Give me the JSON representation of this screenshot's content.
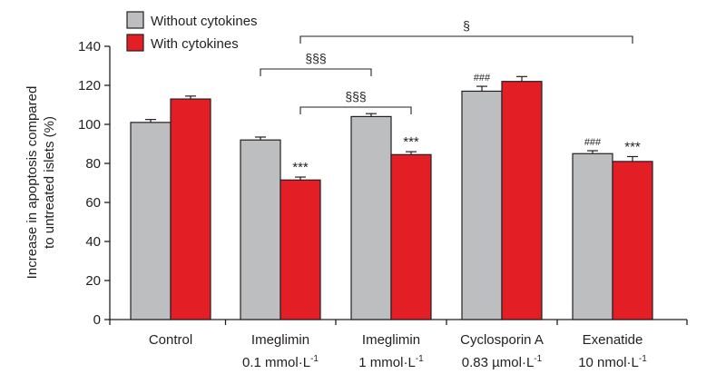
{
  "chart_data": {
    "type": "bar",
    "title": "",
    "xlabel": "",
    "ylabel": [
      "Increase in apoptosis compared",
      "to untreated islets (%)"
    ],
    "ylim": [
      0,
      140
    ],
    "yticks": [
      0,
      20,
      40,
      60,
      80,
      100,
      120,
      140
    ],
    "grid": false,
    "legend_position": "top-left",
    "categories": [
      {
        "line1": "Control",
        "line2": "",
        "sup": ""
      },
      {
        "line1": "Imeglimin",
        "line2": "0.1 mmol·L",
        "sup": "-1"
      },
      {
        "line1": "Imeglimin",
        "line2": "1 mmol·L",
        "sup": "-1"
      },
      {
        "line1": "Cyclosporin A",
        "line2": "0.83 µmol·L",
        "sup": "-1"
      },
      {
        "line1": "Exenatide",
        "line2": "10 nmol·L",
        "sup": "-1"
      }
    ],
    "series": [
      {
        "name": "Without cytokines",
        "color": "#bcbec0",
        "values": [
          101,
          92,
          104,
          117,
          85
        ],
        "errors": [
          1.5,
          1.5,
          1.5,
          2.5,
          1.5
        ]
      },
      {
        "name": "With cytokines",
        "color": "#e31e24",
        "values": [
          113,
          71.5,
          84.5,
          122,
          81
        ],
        "errors": [
          1.5,
          1.5,
          1.5,
          2.5,
          2.5
        ]
      }
    ],
    "bar_annotations": [
      {
        "category": 1,
        "series": 1,
        "text": "***"
      },
      {
        "category": 2,
        "series": 1,
        "text": "***"
      },
      {
        "category": 3,
        "series": 0,
        "text": "###"
      },
      {
        "category": 4,
        "series": 0,
        "text": "###"
      },
      {
        "category": 4,
        "series": 1,
        "text": "***"
      }
    ],
    "brackets": [
      {
        "from": [
          1,
          0
        ],
        "to": [
          2,
          0
        ],
        "text": "§§§",
        "level": 2
      },
      {
        "from": [
          1,
          1
        ],
        "to": [
          2,
          1
        ],
        "text": "§§§",
        "level": 1
      },
      {
        "from": [
          1,
          1
        ],
        "to": [
          4,
          1
        ],
        "text": "§",
        "level": 3
      }
    ]
  },
  "colors": {
    "axis": "#231f20",
    "without": "#bcbec0",
    "with": "#e31e24"
  }
}
